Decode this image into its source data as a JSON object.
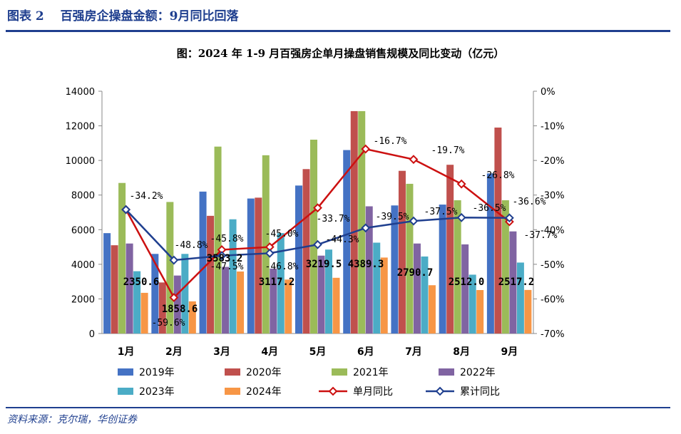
{
  "header": {
    "figure_title": "图表 2　 百强房企操盘金额：9月同比回落"
  },
  "source": "资料来源：克尔瑞，华创证券",
  "chart_data": {
    "type": "bar",
    "title": "图：2024 年 1-9 月百强房企单月操盘销售规模及同比变动（亿元）",
    "categories": [
      "1月",
      "2月",
      "3月",
      "4月",
      "5月",
      "6月",
      "7月",
      "8月",
      "9月"
    ],
    "ylim": [
      0,
      14000
    ],
    "y_ticks": [
      "0",
      "2000",
      "4000",
      "6000",
      "8000",
      "10000",
      "12000",
      "14000"
    ],
    "y2lim": [
      -70,
      0
    ],
    "y2_ticks": [
      "-70%",
      "-60%",
      "-50%",
      "-40%",
      "-30%",
      "-20%",
      "-10%",
      "0%"
    ],
    "series": [
      {
        "name": "2019年",
        "kind": "bar",
        "color": "#4472c4",
        "values": [
          5800,
          4600,
          8200,
          7800,
          8550,
          10600,
          7400,
          7450,
          9250
        ]
      },
      {
        "name": "2020年",
        "kind": "bar",
        "color": "#c0504d",
        "values": [
          5100,
          2950,
          6800,
          7850,
          9500,
          12850,
          9400,
          9750,
          11900
        ]
      },
      {
        "name": "2021年",
        "kind": "bar",
        "color": "#9bbb59",
        "values": [
          8700,
          7600,
          10800,
          10300,
          11200,
          12850,
          8650,
          7700,
          7700
        ]
      },
      {
        "name": "2022年",
        "kind": "bar",
        "color": "#8064a2",
        "values": [
          5200,
          3350,
          3850,
          3750,
          4500,
          7350,
          5200,
          5150,
          5900
        ]
      },
      {
        "name": "2023年",
        "kind": "bar",
        "color": "#4bacc6",
        "values": [
          3600,
          4600,
          6600,
          5800,
          4850,
          5250,
          4450,
          3400,
          4100
        ]
      },
      {
        "name": "2024年",
        "kind": "bar",
        "color": "#f79646",
        "values": [
          2350.6,
          1858.6,
          3583.2,
          3117.2,
          3219.5,
          4389.3,
          2790.7,
          2512.0,
          2517.2
        ],
        "labels": [
          "2350.6",
          "1858.6",
          "3583.2",
          "3117.2",
          "3219.5",
          "4389.3",
          "2790.7",
          "2512.0",
          "2517.2"
        ]
      },
      {
        "name": "单月同比",
        "kind": "line",
        "axis": "right",
        "color": "#cc1010",
        "values": [
          -34.2,
          -59.6,
          -45.8,
          -45.0,
          -33.7,
          -16.7,
          -19.7,
          -26.8,
          -37.7
        ],
        "labels": [
          "-34.2%",
          "-59.6%",
          "-45.8%",
          "-45.0%",
          "-33.7%",
          "-16.7%",
          "-19.7%",
          "-26.8%",
          "-37.7%"
        ]
      },
      {
        "name": "累计同比",
        "kind": "line",
        "axis": "right",
        "color": "#1f3f8f",
        "values": [
          -34.2,
          -48.8,
          -47.5,
          -46.8,
          -44.3,
          -39.5,
          -37.5,
          -36.5,
          -36.6
        ],
        "labels": [
          "-34.2%",
          "-48.8%",
          "-47.5%",
          "-46.8%",
          "-44.3%",
          "-39.5%",
          "-37.5%",
          "-36.5%",
          "-36.6%"
        ]
      }
    ],
    "legend_position": "bottom",
    "grid": false
  }
}
